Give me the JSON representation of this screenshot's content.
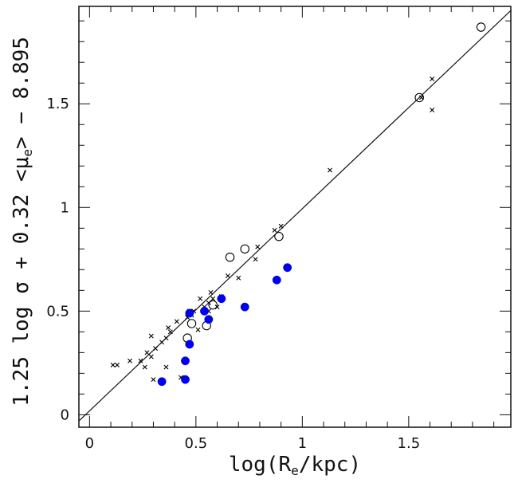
{
  "chart_data": {
    "type": "scatter",
    "title": "",
    "xlabel_parts": {
      "pre": "log(R",
      "sub": "e",
      "post": "/kpc)"
    },
    "ylabel_parts": {
      "pre": "1.25 log σ + 0.32 <μ",
      "sub": "e",
      "post": "> − 8.895"
    },
    "xlim": [
      -0.05,
      1.98
    ],
    "ylim": [
      -0.06,
      1.97
    ],
    "xticks": [
      0,
      0.5,
      1,
      1.5
    ],
    "yticks": [
      0,
      0.5,
      1,
      1.5
    ],
    "xtick_labels": [
      "0",
      "0.5",
      "1",
      "1.5"
    ],
    "ytick_labels": [
      "0",
      "0.5",
      "1",
      "1.5"
    ],
    "grid": false,
    "reference_line": {
      "x": [
        -0.05,
        1.98
      ],
      "y": [
        -0.03,
        1.95
      ]
    },
    "series": [
      {
        "marker": "cross",
        "color": "#000000",
        "points": [
          [
            0.11,
            0.24
          ],
          [
            0.13,
            0.24
          ],
          [
            0.19,
            0.26
          ],
          [
            0.24,
            0.26
          ],
          [
            0.26,
            0.23
          ],
          [
            0.27,
            0.3
          ],
          [
            0.29,
            0.38
          ],
          [
            0.29,
            0.28
          ],
          [
            0.3,
            0.17
          ],
          [
            0.31,
            0.32
          ],
          [
            0.34,
            0.35
          ],
          [
            0.36,
            0.37
          ],
          [
            0.36,
            0.23
          ],
          [
            0.37,
            0.42
          ],
          [
            0.38,
            0.4
          ],
          [
            0.41,
            0.45
          ],
          [
            0.43,
            0.18
          ],
          [
            0.46,
            0.47
          ],
          [
            0.47,
            0.5
          ],
          [
            0.48,
            0.48
          ],
          [
            0.49,
            0.5
          ],
          [
            0.51,
            0.41
          ],
          [
            0.52,
            0.56
          ],
          [
            0.54,
            0.52
          ],
          [
            0.56,
            0.54
          ],
          [
            0.56,
            0.5
          ],
          [
            0.57,
            0.59
          ],
          [
            0.58,
            0.56
          ],
          [
            0.6,
            0.52
          ],
          [
            0.62,
            0.57
          ],
          [
            0.65,
            0.67
          ],
          [
            0.7,
            0.66
          ],
          [
            0.78,
            0.75
          ],
          [
            0.79,
            0.81
          ],
          [
            0.87,
            0.89
          ],
          [
            0.9,
            0.91
          ],
          [
            1.13,
            1.18
          ],
          [
            1.56,
            1.53
          ],
          [
            1.61,
            1.62
          ],
          [
            1.61,
            1.47
          ]
        ]
      },
      {
        "marker": "open-circle",
        "color": "#000000",
        "points": [
          [
            0.46,
            0.37
          ],
          [
            0.48,
            0.44
          ],
          [
            0.55,
            0.43
          ],
          [
            0.58,
            0.53
          ],
          [
            0.66,
            0.76
          ],
          [
            0.73,
            0.8
          ],
          [
            0.89,
            0.86
          ],
          [
            1.55,
            1.53
          ],
          [
            1.84,
            1.87
          ]
        ]
      },
      {
        "marker": "filled-circle",
        "color": "#0000ee",
        "points": [
          [
            0.34,
            0.16
          ],
          [
            0.45,
            0.17
          ],
          [
            0.45,
            0.26
          ],
          [
            0.47,
            0.34
          ],
          [
            0.47,
            0.49
          ],
          [
            0.54,
            0.5
          ],
          [
            0.56,
            0.46
          ],
          [
            0.62,
            0.56
          ],
          [
            0.73,
            0.52
          ],
          [
            0.88,
            0.65
          ],
          [
            0.93,
            0.71
          ]
        ]
      }
    ]
  }
}
